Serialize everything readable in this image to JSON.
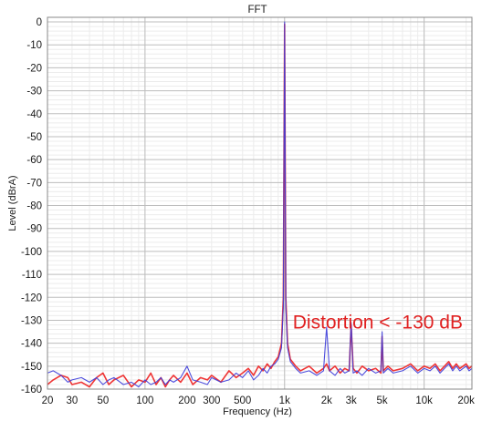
{
  "chart_data": {
    "type": "line",
    "title": "FFT",
    "xlabel": "Frequency (Hz)",
    "ylabel": "Level (dBrA)",
    "xscale": "log",
    "xlim": [
      20,
      22000
    ],
    "ylim": [
      -160,
      2
    ],
    "grid": true,
    "x_tick_values": [
      20,
      30,
      50,
      100,
      200,
      300,
      500,
      1000,
      2000,
      3000,
      5000,
      10000,
      20000
    ],
    "x_tick_labels": [
      "20",
      "30",
      "50",
      "100",
      "200",
      "300",
      "500",
      "1k",
      "2k",
      "3k",
      "5k",
      "10k",
      "20k"
    ],
    "y_tick_values": [
      0,
      -10,
      -20,
      -30,
      -40,
      -50,
      -60,
      -70,
      -80,
      -90,
      -100,
      -110,
      -120,
      -130,
      -140,
      -150,
      -160
    ],
    "y_tick_labels": [
      "0",
      "-10",
      "-20",
      "-30",
      "-40",
      "-50",
      "-60",
      "-70",
      "-80",
      "-90",
      "-100",
      "-110",
      "-120",
      "-130",
      "-140",
      "-150",
      "-160"
    ],
    "series": [
      {
        "color": "#ee2a2a",
        "x": [
          20,
          22,
          25,
          28,
          30,
          35,
          40,
          45,
          50,
          55,
          60,
          70,
          80,
          90,
          100,
          110,
          120,
          130,
          140,
          150,
          160,
          180,
          200,
          220,
          250,
          280,
          300,
          350,
          400,
          450,
          500,
          550,
          600,
          650,
          700,
          750,
          800,
          850,
          900,
          950,
          980,
          1000,
          1020,
          1050,
          1100,
          1200,
          1300,
          1500,
          1700,
          1900,
          2000,
          2100,
          2300,
          2500,
          2700,
          2900,
          3000,
          3100,
          3300,
          3600,
          4000,
          4500,
          4900,
          5000,
          5100,
          5500,
          6000,
          7000,
          8000,
          9000,
          10000,
          11000,
          12000,
          13000,
          14000,
          15000,
          16000,
          17000,
          18000,
          19000,
          20000,
          21000,
          22000
        ],
        "y": [
          -158,
          -156,
          -154,
          -155,
          -158,
          -157,
          -159,
          -155,
          -153,
          -158,
          -156,
          -154,
          -159,
          -156,
          -157,
          -153,
          -158,
          -155,
          -159,
          -156,
          -154,
          -157,
          -153,
          -158,
          -155,
          -156,
          -154,
          -157,
          -152,
          -155,
          -153,
          -151,
          -154,
          -150,
          -152,
          -149,
          -151,
          -148,
          -146,
          -140,
          -120,
          -1,
          -120,
          -140,
          -147,
          -150,
          -152,
          -150,
          -153,
          -151,
          -149,
          -152,
          -150,
          -153,
          -151,
          -152,
          -132,
          -151,
          -153,
          -150,
          -152,
          -151,
          -153,
          -137,
          -152,
          -150,
          -152,
          -151,
          -149,
          -152,
          -150,
          -151,
          -149,
          -152,
          -150,
          -148,
          -151,
          -149,
          -151,
          -150,
          -149,
          -151,
          -150
        ]
      },
      {
        "color": "#3b3bd9",
        "x": [
          20,
          22,
          25,
          28,
          30,
          35,
          40,
          45,
          50,
          55,
          60,
          70,
          80,
          90,
          100,
          110,
          120,
          130,
          140,
          150,
          160,
          180,
          200,
          220,
          250,
          280,
          300,
          350,
          400,
          450,
          500,
          550,
          600,
          650,
          700,
          750,
          800,
          850,
          900,
          950,
          980,
          1000,
          1020,
          1050,
          1100,
          1200,
          1300,
          1500,
          1700,
          1900,
          2000,
          2100,
          2300,
          2500,
          2700,
          2900,
          3000,
          3100,
          3300,
          3600,
          4000,
          4500,
          4900,
          5000,
          5100,
          5500,
          6000,
          7000,
          8000,
          9000,
          10000,
          11000,
          12000,
          13000,
          14000,
          15000,
          16000,
          17000,
          18000,
          19000,
          20000,
          21000,
          22000
        ],
        "y": [
          -153,
          -152,
          -154,
          -157,
          -156,
          -155,
          -157,
          -155,
          -158,
          -156,
          -155,
          -158,
          -157,
          -159,
          -156,
          -158,
          -157,
          -155,
          -158,
          -156,
          -157,
          -155,
          -150,
          -156,
          -157,
          -158,
          -155,
          -157,
          -156,
          -153,
          -155,
          -152,
          -156,
          -154,
          -151,
          -153,
          -150,
          -149,
          -147,
          -142,
          -124,
          0,
          -124,
          -142,
          -148,
          -151,
          -153,
          -152,
          -154,
          -152,
          -133,
          -152,
          -154,
          -151,
          -153,
          -152,
          -131,
          -153,
          -152,
          -154,
          -151,
          -153,
          -152,
          -135,
          -153,
          -151,
          -153,
          -152,
          -150,
          -153,
          -151,
          -152,
          -150,
          -153,
          -151,
          -149,
          -152,
          -150,
          -152,
          -151,
          -150,
          -152,
          -151
        ]
      }
    ],
    "annotations": [
      {
        "text": "Distortion < -130 dB",
        "x": 2000,
        "y": -128,
        "color": "#e02020"
      }
    ]
  }
}
